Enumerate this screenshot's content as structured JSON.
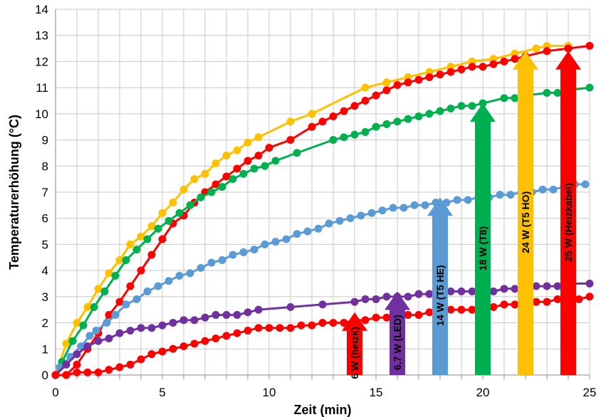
{
  "chart_data": {
    "type": "line",
    "xlabel": "Zeit (min)",
    "ylabel": "Temperaturerhöhung (°C)",
    "xlim": [
      0,
      25
    ],
    "ylim": [
      0,
      14
    ],
    "xticks": [
      "0",
      "5",
      "10",
      "15",
      "20",
      "25"
    ],
    "yticks": [
      "0",
      "1",
      "2",
      "3",
      "4",
      "5",
      "6",
      "7",
      "8",
      "9",
      "10",
      "11",
      "12",
      "13",
      "14"
    ],
    "grid": true,
    "series": [
      {
        "color": "#ffc000",
        "x": [
          0,
          0.5,
          1.0,
          1.5,
          2.0,
          2.5,
          3.0,
          3.5,
          4.0,
          4.5,
          5.0,
          5.5,
          6.0,
          6.5,
          7.0,
          7.5,
          8.0,
          8.5,
          9.0,
          9.5,
          11.0,
          12.0,
          14.5,
          15.5,
          16.5,
          17.5,
          18.5,
          19.5,
          20.5,
          21.5,
          22.5,
          23.0,
          24.0
        ],
        "y": [
          0,
          1.2,
          2.0,
          2.6,
          3.3,
          3.9,
          4.4,
          5.0,
          5.3,
          5.7,
          6.2,
          6.6,
          7.1,
          7.5,
          7.7,
          8.1,
          8.4,
          8.6,
          8.9,
          9.1,
          9.7,
          10.0,
          11.0,
          11.2,
          11.4,
          11.6,
          11.8,
          12.0,
          12.1,
          12.3,
          12.5,
          12.6,
          12.6
        ]
      },
      {
        "color": "#ff0000",
        "x": [
          0,
          0.5,
          1.0,
          1.5,
          2.0,
          2.5,
          3.0,
          3.5,
          4.0,
          4.5,
          5.0,
          5.5,
          6.0,
          6.5,
          7.0,
          7.5,
          8.0,
          8.5,
          9.0,
          9.5,
          10.0,
          11.0,
          12.0,
          12.5,
          13.0,
          13.5,
          14.0,
          14.5,
          15.0,
          15.5,
          16.0,
          16.5,
          17.0,
          17.5,
          18.0,
          18.5,
          19.0,
          19.5,
          20.0,
          20.5,
          21.0,
          21.5,
          22.0,
          23.0,
          24.0,
          25.0
        ],
        "y": [
          0,
          0,
          0.4,
          1.0,
          1.6,
          2.3,
          2.8,
          3.4,
          4.0,
          4.6,
          5.2,
          5.8,
          6.1,
          6.6,
          7.0,
          7.3,
          7.6,
          7.9,
          8.2,
          8.4,
          8.7,
          9.0,
          9.5,
          9.7,
          9.9,
          10.1,
          10.3,
          10.5,
          10.7,
          10.9,
          11.1,
          11.2,
          11.3,
          11.4,
          11.5,
          11.6,
          11.7,
          11.8,
          11.8,
          11.9,
          12.0,
          12.1,
          12.2,
          12.4,
          12.5,
          12.6
        ]
      },
      {
        "color": "#00b050",
        "x": [
          0,
          0.3,
          0.8,
          1.3,
          1.8,
          2.3,
          2.8,
          3.3,
          3.8,
          4.3,
          4.8,
          5.3,
          5.8,
          6.3,
          6.8,
          7.3,
          7.8,
          8.3,
          8.8,
          9.3,
          9.8,
          10.3,
          11.3,
          13.0,
          13.5,
          14.0,
          14.5,
          15.0,
          15.5,
          16.0,
          16.5,
          17.0,
          17.5,
          18.0,
          18.5,
          19.0,
          19.5,
          20.0,
          21.0,
          21.5,
          22.0,
          23.0,
          23.5,
          24.0,
          25.0
        ],
        "y": [
          0,
          0.5,
          1.3,
          1.9,
          2.6,
          3.2,
          3.8,
          4.4,
          4.8,
          5.2,
          5.6,
          5.9,
          6.2,
          6.5,
          6.8,
          7.0,
          7.2,
          7.5,
          7.7,
          7.9,
          8.0,
          8.2,
          8.5,
          9.0,
          9.1,
          9.2,
          9.3,
          9.5,
          9.6,
          9.7,
          9.8,
          9.9,
          10.0,
          10.1,
          10.2,
          10.3,
          10.3,
          10.4,
          10.6,
          10.6,
          10.7,
          10.8,
          10.8,
          10.9,
          11.0
        ]
      },
      {
        "color": "#5b9bd5",
        "x": [
          0,
          0.2,
          0.7,
          1.2,
          1.6,
          1.9,
          2.4,
          2.8,
          3.3,
          3.8,
          4.3,
          4.8,
          5.3,
          5.8,
          6.3,
          6.8,
          7.3,
          7.8,
          8.3,
          8.8,
          9.3,
          9.8,
          10.3,
          10.8,
          11.3,
          11.8,
          12.3,
          12.8,
          13.3,
          13.8,
          14.3,
          14.8,
          15.3,
          15.8,
          16.3,
          16.8,
          17.3,
          17.8,
          18.3,
          18.8,
          19.3,
          19.8,
          20.3,
          20.8,
          21.3,
          21.8,
          22.3,
          22.8,
          23.3,
          23.8,
          24.3,
          24.8
        ],
        "y": [
          0,
          0.3,
          0.7,
          1.1,
          1.5,
          1.7,
          2.0,
          2.3,
          2.7,
          2.9,
          3.2,
          3.4,
          3.6,
          3.8,
          3.9,
          4.1,
          4.3,
          4.4,
          4.6,
          4.7,
          4.8,
          5.0,
          5.1,
          5.2,
          5.4,
          5.5,
          5.6,
          5.8,
          5.9,
          6.0,
          6.1,
          6.2,
          6.3,
          6.4,
          6.4,
          6.5,
          6.5,
          6.6,
          6.6,
          6.7,
          6.7,
          6.8,
          6.8,
          6.9,
          6.9,
          7.0,
          7.0,
          7.1,
          7.1,
          7.2,
          7.3,
          7.3
        ]
      },
      {
        "color": "#7030a0",
        "x": [
          0,
          0.5,
          1.0,
          1.5,
          2.0,
          2.5,
          3.0,
          3.5,
          4.0,
          4.5,
          5.0,
          5.5,
          6.0,
          6.5,
          7.0,
          7.5,
          8.0,
          8.5,
          9.0,
          9.5,
          11.0,
          12.5,
          14.0,
          14.5,
          15.0,
          15.5,
          16.0,
          16.5,
          17.0,
          17.5,
          18.0,
          18.5,
          19.0,
          19.5,
          20.0,
          20.5,
          21.0,
          21.5,
          22.0,
          22.5,
          23.0,
          23.5,
          24.0,
          25.0
        ],
        "y": [
          0,
          0.4,
          0.8,
          1.1,
          1.3,
          1.4,
          1.6,
          1.7,
          1.8,
          1.8,
          1.9,
          2.0,
          2.1,
          2.1,
          2.2,
          2.3,
          2.3,
          2.3,
          2.4,
          2.5,
          2.6,
          2.7,
          2.8,
          2.9,
          2.9,
          3.0,
          3.0,
          3.0,
          3.1,
          3.1,
          3.1,
          3.2,
          3.2,
          3.2,
          3.2,
          3.2,
          3.3,
          3.3,
          3.3,
          3.4,
          3.4,
          3.4,
          3.5,
          3.5
        ]
      },
      {
        "color": "#ff0000",
        "x": [
          0,
          0.5,
          1.0,
          1.5,
          2.0,
          2.5,
          3.0,
          3.5,
          4.0,
          4.5,
          5.0,
          5.5,
          6.0,
          6.5,
          7.0,
          7.5,
          8.0,
          8.5,
          9.0,
          9.5,
          10.0,
          10.5,
          11.0,
          11.5,
          12.0,
          12.5,
          13.0,
          13.5,
          14.0,
          14.5,
          15.0,
          15.5,
          16.0,
          16.5,
          17.0,
          17.5,
          18.0,
          18.5,
          19.0,
          19.5,
          20.0,
          20.5,
          21.0,
          21.5,
          22.0,
          22.5,
          23.0,
          23.5,
          24.0,
          24.5,
          25.0
        ],
        "y": [
          0,
          0,
          0.1,
          0.1,
          0.1,
          0.2,
          0.3,
          0.4,
          0.6,
          0.8,
          0.9,
          1.0,
          1.1,
          1.2,
          1.3,
          1.4,
          1.5,
          1.6,
          1.7,
          1.8,
          1.8,
          1.8,
          1.8,
          1.9,
          1.9,
          2.0,
          2.0,
          2.0,
          2.1,
          2.1,
          2.2,
          2.2,
          2.3,
          2.3,
          2.3,
          2.4,
          2.4,
          2.5,
          2.5,
          2.5,
          2.6,
          2.6,
          2.7,
          2.7,
          2.8,
          2.8,
          2.8,
          2.9,
          2.9,
          2.9,
          3.0
        ]
      }
    ],
    "arrows": [
      {
        "label": "6 W (heizk)",
        "x": 14.0,
        "top": 2.4,
        "color": "#ff0000"
      },
      {
        "label": "6,7 W (LED)",
        "x": 16.0,
        "top": 3.2,
        "color": "#7030a0"
      },
      {
        "label": "14 W (T5 HE)",
        "x": 18.0,
        "top": 6.8,
        "color": "#5b9bd5"
      },
      {
        "label": "18 W (T8)",
        "x": 20.0,
        "top": 10.4,
        "color": "#00b050"
      },
      {
        "label": "24 W (T5 HO)",
        "x": 22.0,
        "top": 12.4,
        "color": "#ffc000"
      },
      {
        "label": "25 W (Heizkabel)",
        "x": 24.0,
        "top": 12.4,
        "color": "#ff0000"
      }
    ]
  }
}
